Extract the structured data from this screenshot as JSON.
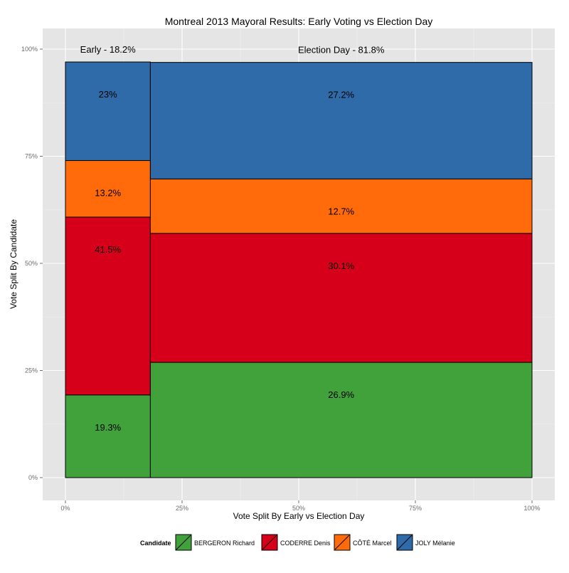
{
  "chart_data": {
    "type": "bar",
    "title": "Montreal 2013 Mayoral Results: Early Voting vs Election Day",
    "xlabel": "Vote Split By Early vs Election Day",
    "ylabel": "Vote Split By Candidate",
    "xlim": [
      0,
      1
    ],
    "ylim": [
      0,
      1
    ],
    "x_ticks": [
      "0%",
      "25%",
      "50%",
      "75%",
      "100%"
    ],
    "y_ticks": [
      "0%",
      "25%",
      "50%",
      "75%",
      "100%"
    ],
    "grid": true,
    "groups": [
      {
        "label": "Early - 18.2%",
        "share": 0.182,
        "values": [
          {
            "candidate": "BERGERON Richard",
            "value": 0.193,
            "label": "19.3%"
          },
          {
            "candidate": "CODERRE Denis",
            "value": 0.415,
            "label": "41.5%"
          },
          {
            "candidate": "CÔTÉ Marcel",
            "value": 0.132,
            "label": "13.2%"
          },
          {
            "candidate": "JOLY Mélanie",
            "value": 0.23,
            "label": "23%"
          }
        ]
      },
      {
        "label": "Election Day - 81.8%",
        "share": 0.818,
        "values": [
          {
            "candidate": "BERGERON Richard",
            "value": 0.269,
            "label": "26.9%"
          },
          {
            "candidate": "CODERRE Denis",
            "value": 0.301,
            "label": "30.1%"
          },
          {
            "candidate": "CÔTÉ Marcel",
            "value": 0.127,
            "label": "12.7%"
          },
          {
            "candidate": "JOLY Mélanie",
            "value": 0.272,
            "label": "27.2%"
          }
        ]
      }
    ],
    "legend": {
      "title": "Candidate",
      "position": "bottom",
      "entries": [
        {
          "name": "BERGERON Richard",
          "color": "#41a13b"
        },
        {
          "name": "CODERRE Denis",
          "color": "#d7001a"
        },
        {
          "name": "CÔTÉ Marcel",
          "color": "#ff6a0a"
        },
        {
          "name": "JOLY Mélanie",
          "color": "#2f6ba8"
        }
      ]
    }
  }
}
